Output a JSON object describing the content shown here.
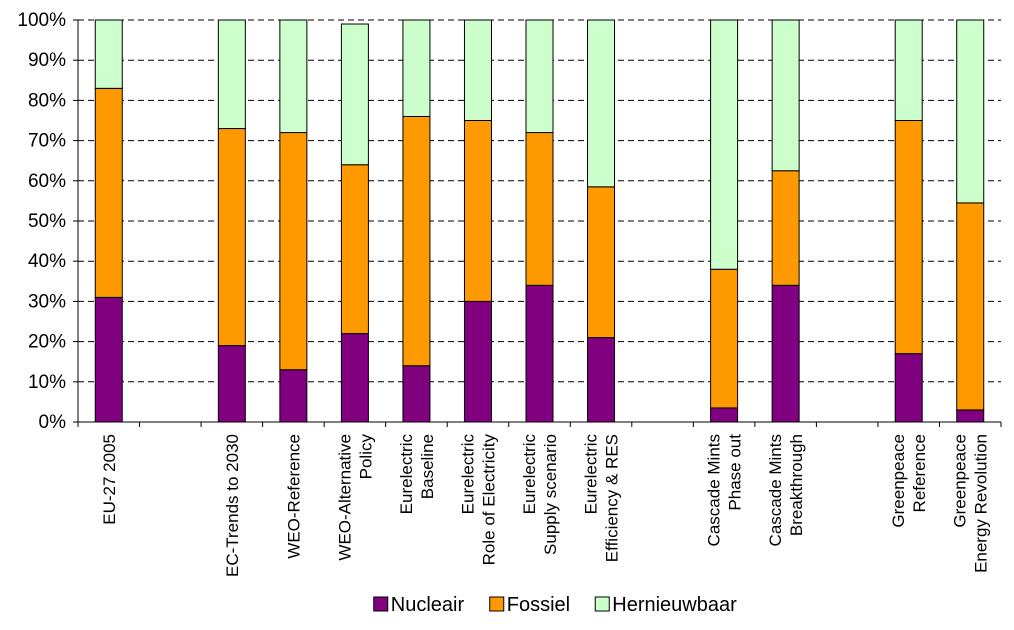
{
  "chart_data": {
    "type": "bar",
    "stacked": true,
    "categories": [
      [
        "EU-27 2005"
      ],
      [],
      [
        "EC-Trends to 2030"
      ],
      [
        "WEO-Reference"
      ],
      [
        "WEO-Alternative",
        "Policy"
      ],
      [
        "Eurelectric",
        "Baseline"
      ],
      [
        "Eurelectric",
        "Role of Electricity"
      ],
      [
        "Eurelectric",
        "Supply scenario"
      ],
      [
        "Eurelectric",
        "Efficiency & RES"
      ],
      [],
      [
        "Cascade Mints",
        "Phase out"
      ],
      [
        "Cascade Mints",
        "Breakthrough"
      ],
      [],
      [
        "Greenpeace",
        "Reference"
      ],
      [
        "Greenpeace",
        "Energy Revolution"
      ]
    ],
    "series": [
      {
        "name": "Nucleair",
        "color": "#800080",
        "values": [
          31,
          null,
          19,
          13,
          22,
          14,
          30,
          34,
          21,
          null,
          3.5,
          34,
          null,
          17,
          3
        ]
      },
      {
        "name": "Fossiel",
        "color": "#ff9900",
        "values": [
          52,
          null,
          54,
          59,
          42,
          62,
          45,
          38,
          37.5,
          null,
          34.5,
          28.5,
          null,
          58,
          51.5
        ]
      },
      {
        "name": "Hernieuwbaar",
        "color": "#ccffcc",
        "values": [
          17,
          null,
          27,
          28,
          35,
          24,
          25,
          28,
          41.5,
          null,
          62,
          37.5,
          null,
          25,
          45.5
        ]
      }
    ],
    "yticks": [
      "0%",
      "10%",
      "20%",
      "30%",
      "40%",
      "50%",
      "60%",
      "70%",
      "80%",
      "90%",
      "100%"
    ],
    "ylim": [
      0,
      100
    ],
    "grid": true,
    "legend_position": "bottom"
  }
}
